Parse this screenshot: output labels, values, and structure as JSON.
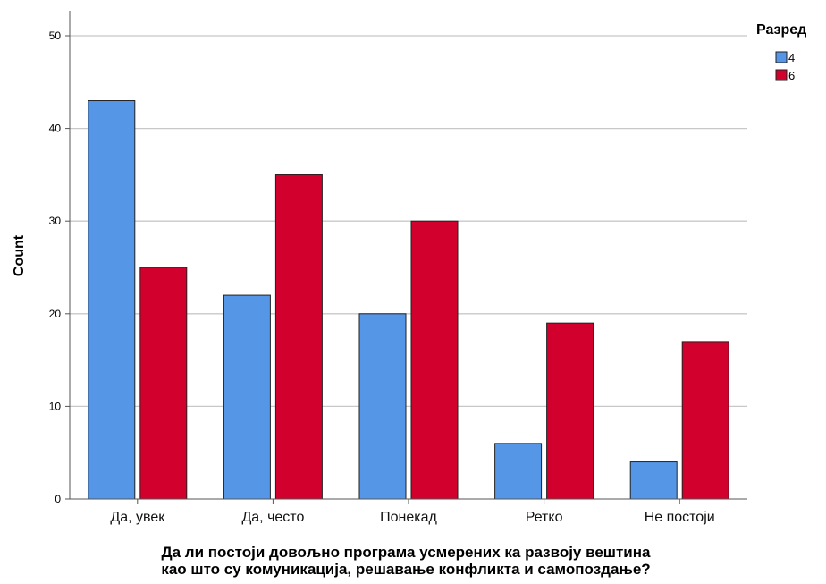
{
  "chart_data": {
    "type": "bar",
    "title": "",
    "xlabel": [
      "Да ли постоји довољно програма усмерених ка развоју вештина",
      "као што су комуникација, решавање конфликта и самопоздање?"
    ],
    "ylabel": "Count",
    "ylim": [
      0,
      50
    ],
    "yticks": [
      0,
      10,
      20,
      30,
      40,
      50
    ],
    "grid": true,
    "legend_title": "Разред",
    "legend_position": "top-right",
    "categories": [
      "Да, увек",
      "Да, често",
      "Понекад",
      "Ретко",
      "Не постоји"
    ],
    "series": [
      {
        "name": "4",
        "color": "#5596E6",
        "values": [
          43,
          22,
          20,
          6,
          4
        ]
      },
      {
        "name": "6",
        "color": "#D2002C",
        "values": [
          25,
          35,
          30,
          19,
          17
        ]
      }
    ]
  }
}
